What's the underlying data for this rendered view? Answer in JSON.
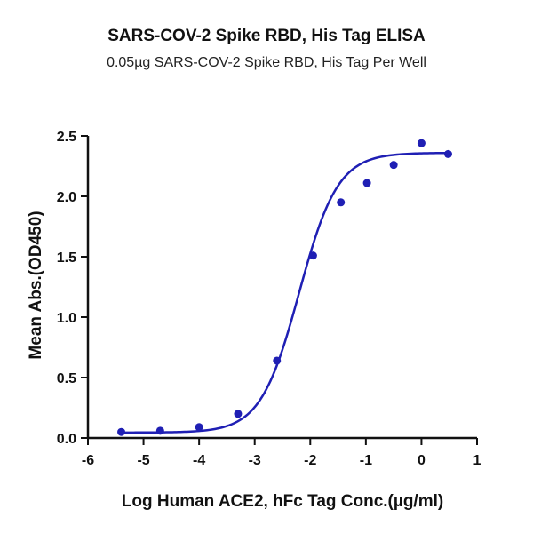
{
  "chart_data": {
    "type": "scatter",
    "title": "SARS-COV-2 Spike RBD, His Tag ELISA",
    "subtitle": "0.05µg SARS-COV-2 Spike RBD, His Tag Per Well",
    "xlabel": "Log Human ACE2, hFc Tag Conc.(µg/ml)",
    "ylabel": "Mean Abs.(OD450)",
    "xlim": [
      -6,
      1
    ],
    "ylim": [
      0,
      2.5
    ],
    "xticks": [
      "-6",
      "-5",
      "-4",
      "-3",
      "-2",
      "-1",
      "0",
      "1"
    ],
    "yticks": [
      "0.0",
      "0.5",
      "1.0",
      "1.5",
      "2.0",
      "2.5"
    ],
    "grid": false,
    "series": [
      {
        "x": [
          -5.4,
          -4.7,
          -4.0,
          -3.3,
          -2.6,
          -1.95,
          -1.45,
          -0.98,
          -0.5,
          0.0,
          0.48
        ],
        "y": [
          0.05,
          0.06,
          0.09,
          0.2,
          0.64,
          1.51,
          1.95,
          2.11,
          2.26,
          2.44,
          2.35
        ],
        "color": "#1f1fb4",
        "fit": "4PL",
        "fit_params": {
          "bottom": 0.045,
          "top": 2.36,
          "logEC50": -2.2,
          "hill": 1.25
        }
      }
    ]
  }
}
